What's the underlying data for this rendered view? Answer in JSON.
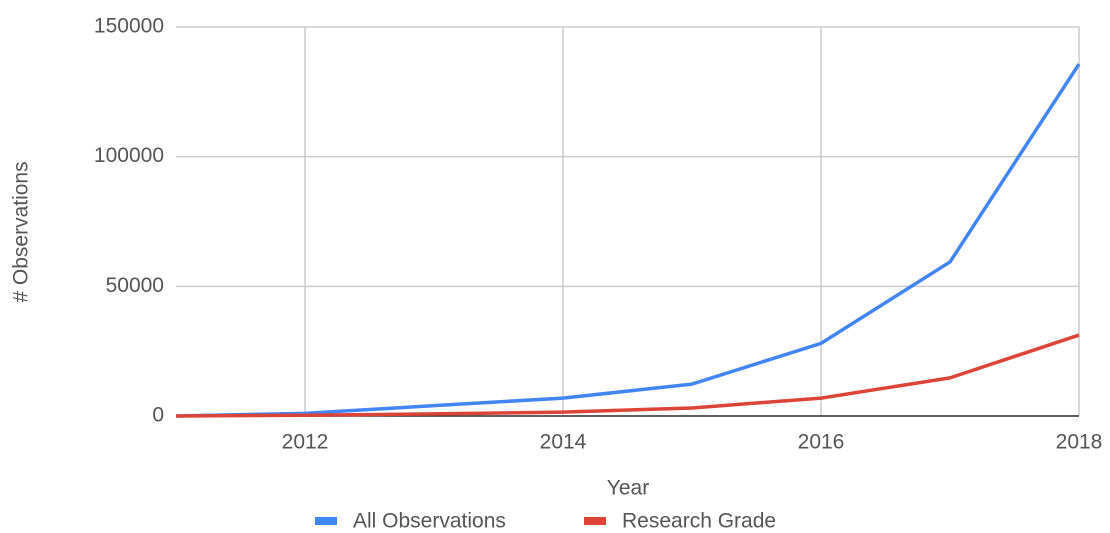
{
  "chart_data": {
    "type": "line",
    "x_label": "Year",
    "y_label": "# Observations",
    "x": [
      2011,
      2012,
      2013,
      2014,
      2015,
      2016,
      2017,
      2018
    ],
    "series": [
      {
        "name": "All Observations",
        "color": "#4285f4",
        "values": [
          0,
          1000,
          4000,
          6900,
          12300,
          28000,
          59400,
          135700
        ]
      },
      {
        "name": "Research Grade",
        "color": "#db4437",
        "values": [
          0,
          300,
          800,
          1500,
          3100,
          6900,
          14700,
          31200
        ]
      }
    ],
    "xlim": [
      2011,
      2018
    ],
    "xticks": [
      2012,
      2014,
      2016,
      2018
    ],
    "ylim": [
      0,
      150000
    ],
    "yticks": [
      0,
      50000,
      100000,
      150000
    ],
    "grid": true,
    "legend": "bottom"
  }
}
